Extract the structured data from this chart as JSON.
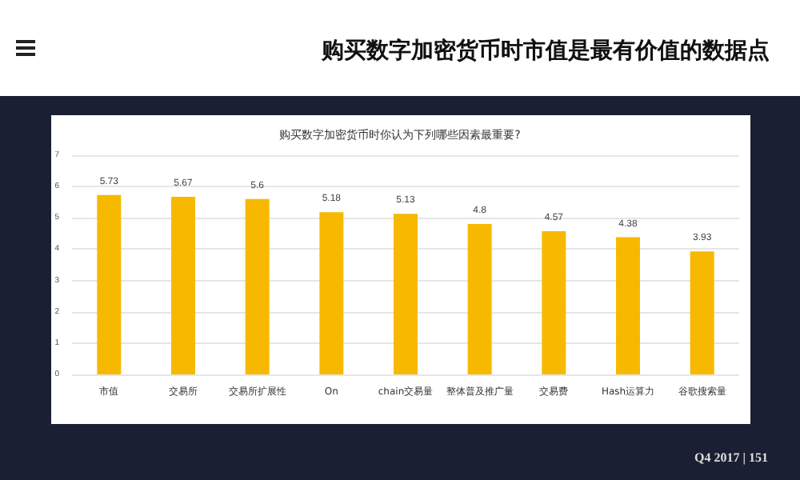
{
  "chart_data": {
    "type": "bar",
    "title": "购买数字加密货币时市值是最有价值的数据点",
    "subtitle": "购买数字加密货币时你认为下列哪些因素最重要?",
    "categories": [
      "市值",
      "交易所",
      "交易所扩展性",
      "On",
      "chain交易量",
      "整体普及推广量",
      "交易费",
      "Hash运算力",
      "谷歌搜索量"
    ],
    "values": [
      5.73,
      5.67,
      5.6,
      5.18,
      5.13,
      4.8,
      4.57,
      4.38,
      3.93
    ],
    "color": "#f7b900",
    "ylim": [
      0,
      7
    ],
    "yticks": [
      0,
      1,
      2,
      3,
      4,
      5,
      6,
      7
    ],
    "grid": "y",
    "data_labels": true,
    "annotations": [
      "Q4 2017 | 151"
    ]
  }
}
